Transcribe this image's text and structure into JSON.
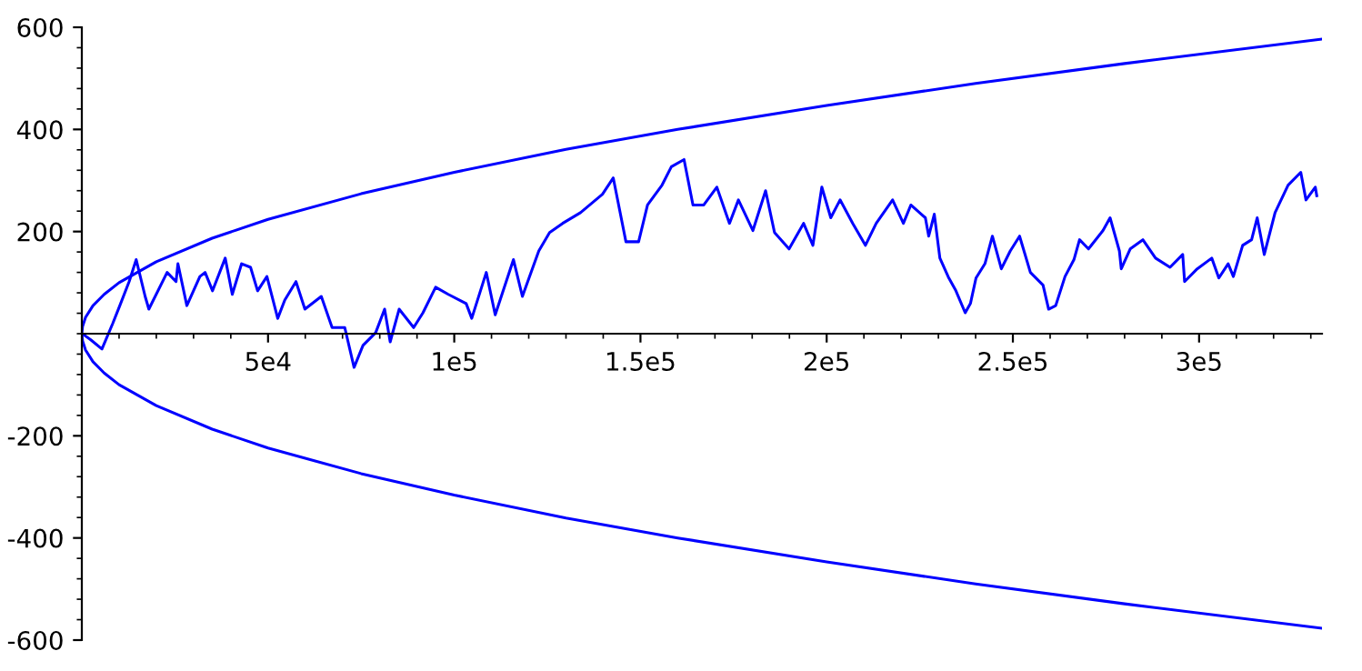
{
  "chart_data": {
    "type": "line",
    "xlim": [
      0,
      333000
    ],
    "ylim": [
      -600,
      600
    ],
    "xticks": [
      {
        "value": 50000,
        "label": "5e4"
      },
      {
        "value": 100000,
        "label": "1e5"
      },
      {
        "value": 150000,
        "label": "1.5e5"
      },
      {
        "value": 200000,
        "label": "2e5"
      },
      {
        "value": 250000,
        "label": "2.5e5"
      },
      {
        "value": 300000,
        "label": "3e5"
      }
    ],
    "yticks": [
      -600,
      -400,
      -200,
      200,
      400,
      600
    ],
    "grid": false,
    "legend": false,
    "marker": "none",
    "line_style": "solid",
    "series": [
      {
        "color": "#0000ff",
        "x": [
          0,
          500,
          2400,
          5400,
          8300,
          10200,
          12700,
          14600,
          17000,
          18000,
          22900,
          25300,
          25800,
          28200,
          31700,
          33100,
          35100,
          38500,
          40400,
          42900,
          45300,
          47200,
          49700,
          52600,
          54500,
          57500,
          59900,
          64300,
          67200,
          70600,
          73100,
          75500,
          78900,
          81300,
          82800,
          85200,
          89100,
          91600,
          95000,
          98400,
          103200,
          104700,
          108600,
          111000,
          115900,
          118300,
          122700,
          125600,
          129100,
          133900,
          139800,
          142700,
          146100,
          149500,
          151900,
          155800,
          158300,
          161700,
          164100,
          167000,
          170500,
          173900,
          176300,
          180200,
          183600,
          186000,
          189900,
          193800,
          196300,
          198700,
          201100,
          203600,
          207000,
          210400,
          213300,
          217700,
          220600,
          222600,
          226500,
          227400,
          228900,
          230400,
          232800,
          234700,
          237200,
          238600,
          240100,
          242500,
          244500,
          246900,
          249300,
          251800,
          254700,
          258100,
          259600,
          261500,
          264000,
          266400,
          267900,
          270300,
          274200,
          276100,
          278600,
          279100,
          281500,
          284900,
          288300,
          292200,
          295600,
          296100,
          299500,
          303400,
          305300,
          307800,
          309200,
          311700,
          314100,
          315600,
          317500,
          320400,
          323900,
          327300,
          328700,
          331200,
          331600
        ],
        "values": [
          0,
          -2,
          -12,
          -30,
          20,
          55,
          102,
          145,
          73,
          48,
          120,
          102,
          137,
          55,
          112,
          120,
          84,
          148,
          77,
          137,
          130,
          84,
          112,
          30,
          66,
          102,
          48,
          73,
          12,
          12,
          -66,
          -23,
          2,
          48,
          -16,
          48,
          12,
          41,
          91,
          77,
          59,
          30,
          120,
          37,
          145,
          73,
          162,
          198,
          216,
          237,
          273,
          305,
          180,
          180,
          252,
          291,
          327,
          341,
          252,
          252,
          287,
          216,
          262,
          202,
          280,
          198,
          166,
          216,
          173,
          287,
          227,
          262,
          216,
          173,
          216,
          262,
          216,
          252,
          227,
          191,
          234,
          148,
          109,
          84,
          41,
          59,
          109,
          137,
          191,
          127,
          162,
          191,
          120,
          95,
          48,
          55,
          112,
          145,
          184,
          166,
          202,
          227,
          162,
          127,
          166,
          184,
          148,
          130,
          155,
          102,
          127,
          148,
          109,
          137,
          112,
          173,
          184,
          227,
          155,
          237,
          291,
          316,
          262,
          287,
          270
        ]
      },
      {
        "color": "#0000ff",
        "x": [
          333000,
          280000,
          240000,
          200000,
          160000,
          130000,
          100000,
          75000,
          50000,
          35000,
          20000,
          10000,
          6000,
          3000,
          1000,
          200,
          0,
          200,
          1000,
          3000,
          6000,
          10000,
          20000,
          35000,
          50000,
          75000,
          100000,
          130000,
          160000,
          200000,
          240000,
          280000,
          333000
        ],
        "values": [
          577,
          529,
          490,
          447,
          400,
          361,
          316,
          274,
          224,
          187,
          141,
          100,
          77,
          55,
          32,
          14,
          0,
          -14,
          -32,
          -55,
          -77,
          -100,
          -141,
          -187,
          -224,
          -274,
          -316,
          -361,
          -400,
          -447,
          -490,
          -529,
          -577
        ]
      }
    ]
  }
}
